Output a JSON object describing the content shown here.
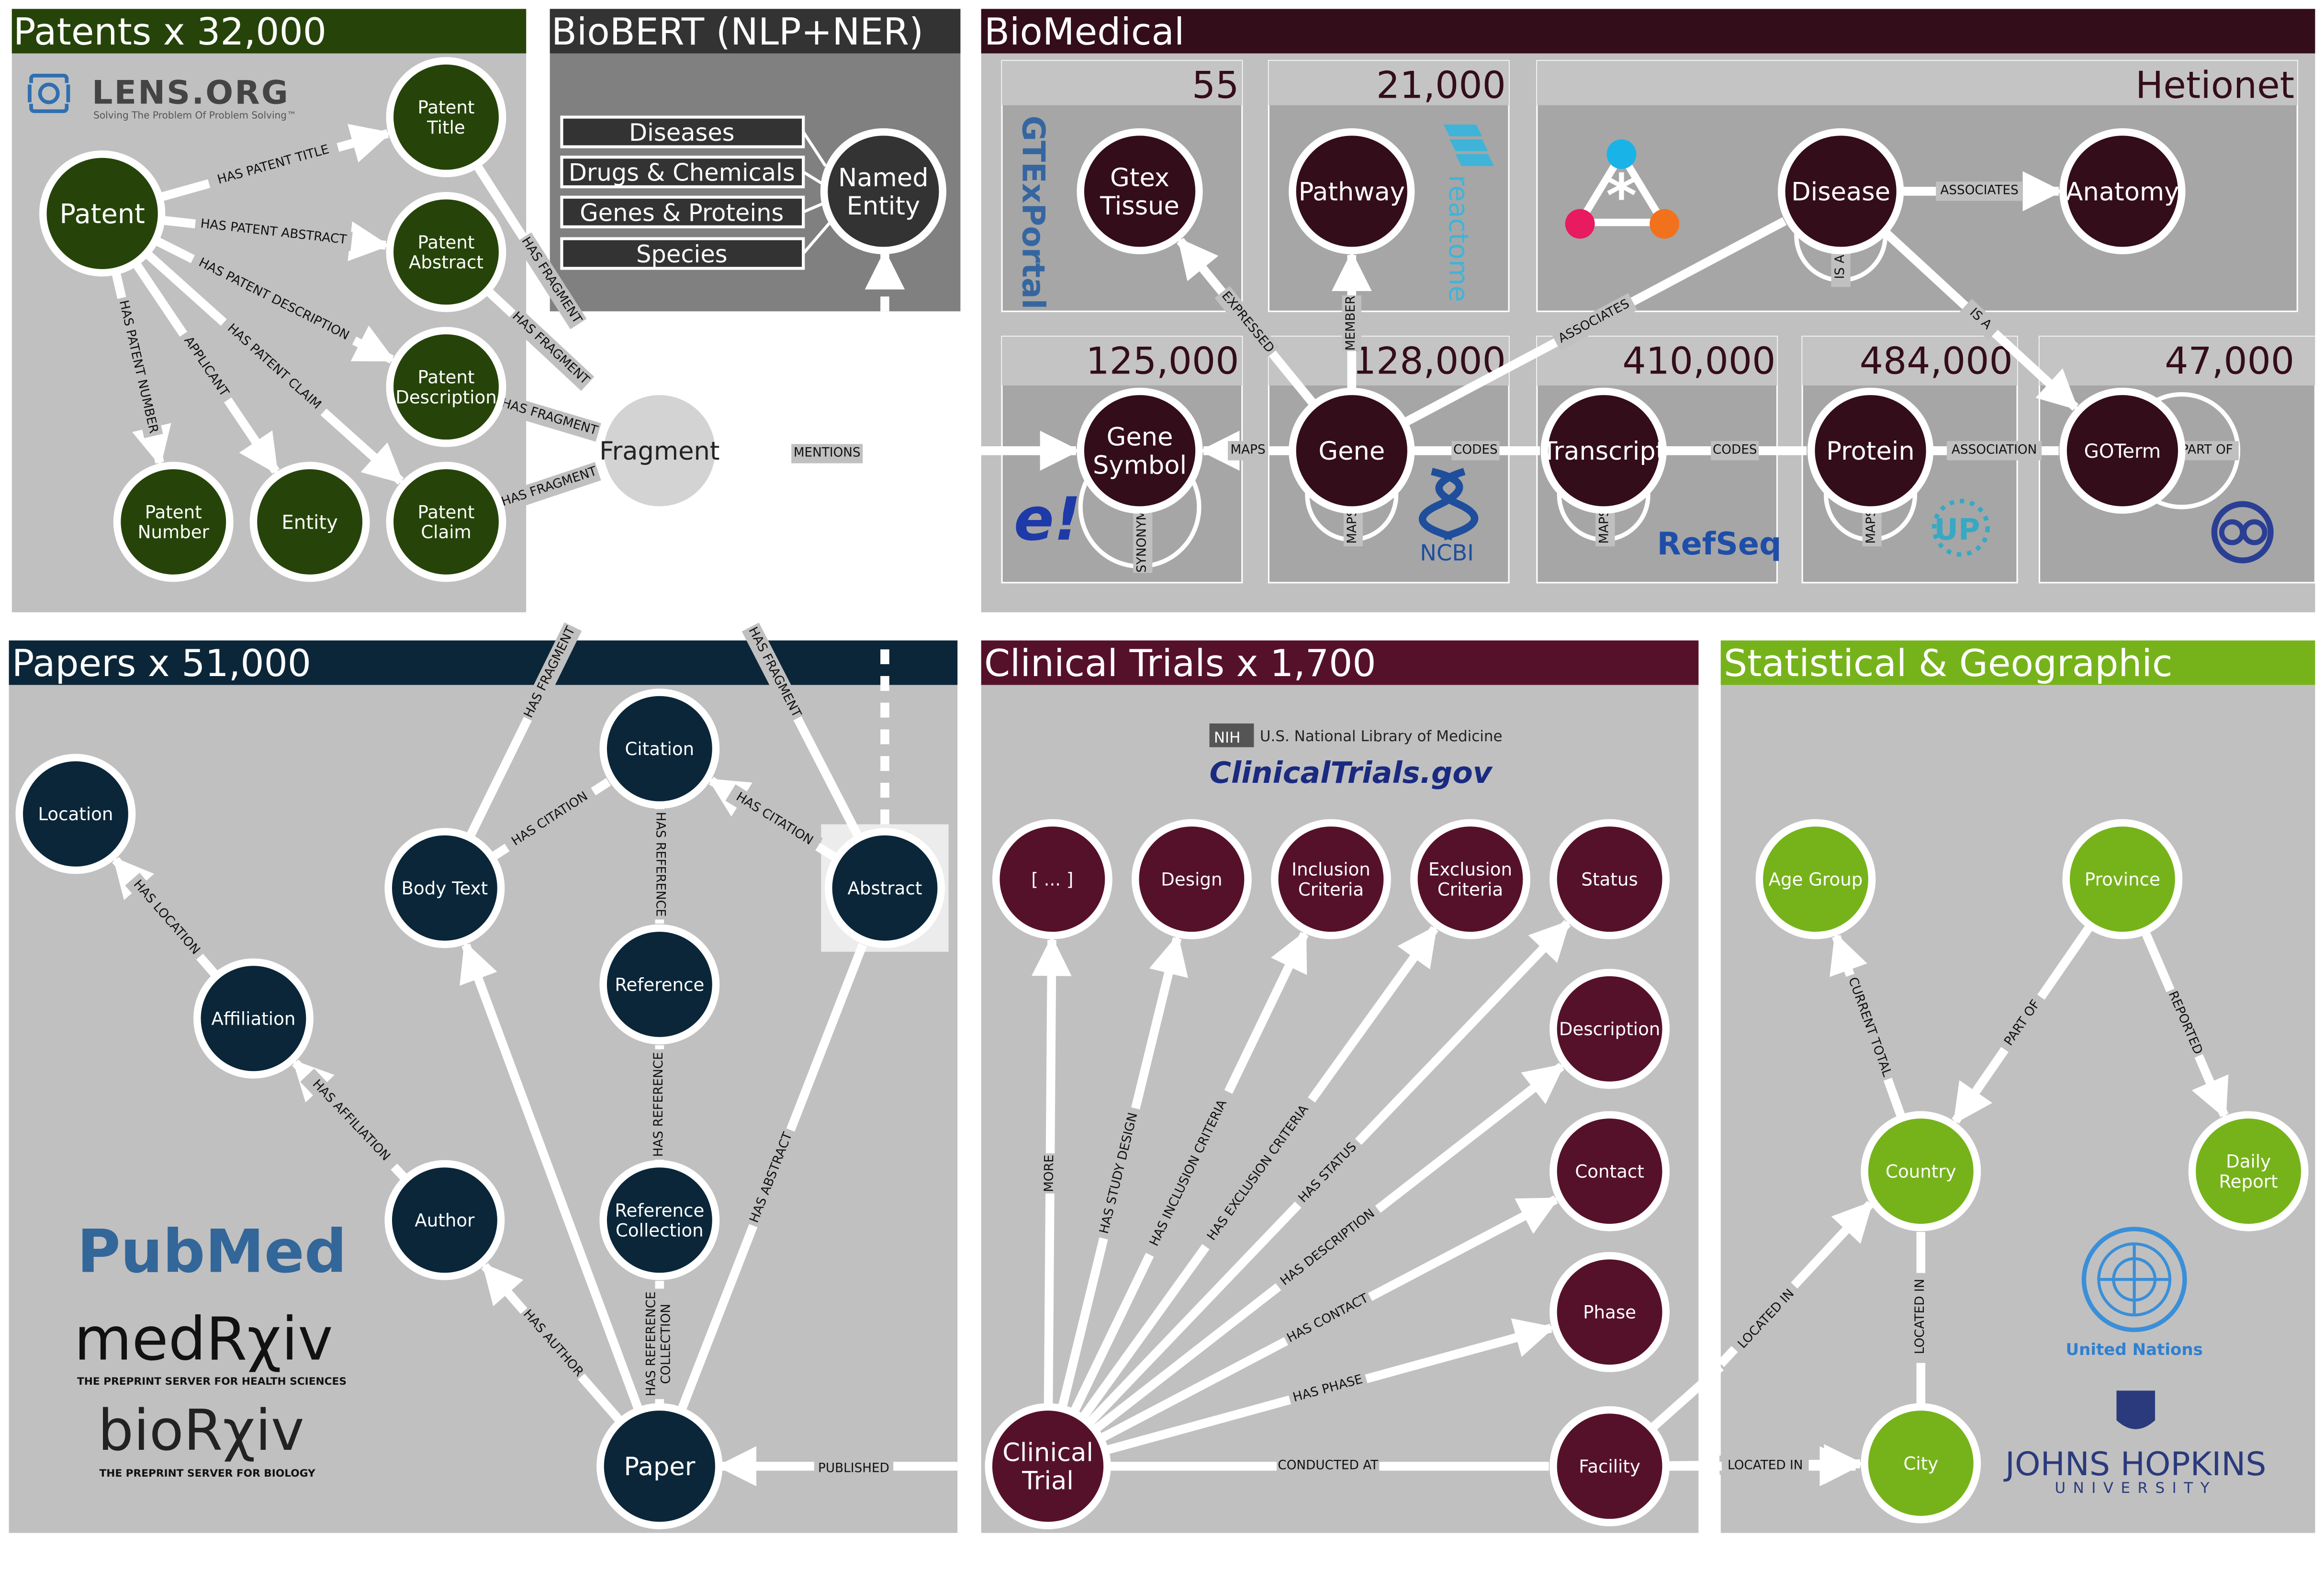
{
  "panels": {
    "patents": {
      "title": "Patents x 32,000"
    },
    "biobert": {
      "title": "BioBERT (NLP+NER)"
    },
    "biomedical": {
      "title": "BioMedical"
    },
    "papers": {
      "title": "Papers x 51,000"
    },
    "trials": {
      "title": "Clinical Trials x 1,700"
    },
    "statgeo": {
      "title": "Statistical & Geographic"
    }
  },
  "colors": {
    "patents": "#264409",
    "biobert": "#333333",
    "biomedical": "#340d1a",
    "papers": "#0b2639",
    "trials": "#56112a",
    "statgeo": "#76b31b",
    "panel_bg": "#c0c0c0"
  },
  "logos": {
    "lens": {
      "name": "LENS.ORG",
      "tagline": "Solving The Problem Of Problem Solving™",
      "icon": "lens-icon"
    },
    "pubmed": {
      "text": "PubMed"
    },
    "medrxiv": {
      "name": "medRχiv",
      "tagline": "THE PREPRINT SERVER FOR HEALTH SCIENCES"
    },
    "biorxiv": {
      "name": "bioRχiv",
      "tagline": "THE PREPRINT SERVER FOR BIOLOGY"
    },
    "nih": {
      "badge": "NIH",
      "text": "U.S. National Library of Medicine",
      "product": "ClinicalTrials.gov"
    },
    "un": {
      "text": "United Nations",
      "icon": "un-emblem-icon"
    },
    "jhu": {
      "name": "JOHNS HOPKINS",
      "sub": "UNIVERSITY",
      "icon": "jhu-shield-icon"
    },
    "gtex": {
      "text": "GTExPortal"
    },
    "reactome": {
      "text": "reactome"
    },
    "ncbi": {
      "text": "NCBI"
    },
    "refseq": {
      "text": "RefSeq"
    },
    "uniprot": {
      "text": "UP"
    },
    "ensembl": {
      "text": "e!"
    },
    "go": {
      "text": "go"
    },
    "hetionet": {
      "icon": "hetionet-icon"
    }
  },
  "ner_entities": [
    "Diseases",
    "Drugs & Chemicals",
    "Genes & Proteins",
    "Species"
  ],
  "biomed_counts": {
    "gtex": "55",
    "pathway": "21,000",
    "hetionet": "Hetionet",
    "genesymbol": "125,000",
    "gene": "128,000",
    "transcript": "410,000",
    "protein": "484,000",
    "goterm": "47,000"
  },
  "nodes": {
    "patent": "Patent",
    "patent_title": [
      "Patent",
      "Title"
    ],
    "patent_abstract": [
      "Patent",
      "Abstract"
    ],
    "patent_description": [
      "Patent",
      "Description"
    ],
    "patent_claim": [
      "Patent",
      "Claim"
    ],
    "patent_number": [
      "Patent",
      "Number"
    ],
    "entity": "Entity",
    "named_entity": [
      "Named",
      "Entity"
    ],
    "fragment": "Fragment",
    "gtex_tissue": [
      "Gtex",
      "Tissue"
    ],
    "pathway": "Pathway",
    "disease": "Disease",
    "anatomy": "Anatomy",
    "gene_symbol": [
      "Gene",
      "Symbol"
    ],
    "gene": "Gene",
    "transcript": "Transcript",
    "protein": "Protein",
    "goterm": "GOTerm",
    "location": "Location",
    "affiliation": "Affiliation",
    "author": "Author",
    "body_text": "Body Text",
    "citation": "Citation",
    "reference": "Reference",
    "reference_collection": [
      "Reference",
      "Collection"
    ],
    "abstract": "Abstract",
    "paper": "Paper",
    "more": "[ ... ]",
    "design": "Design",
    "inclusion": [
      "Inclusion",
      "Criteria"
    ],
    "exclusion": [
      "Exclusion",
      "Criteria"
    ],
    "status": "Status",
    "description": "Description",
    "contact": "Contact",
    "phase": "Phase",
    "facility": "Facility",
    "clinical_trial": [
      "Clinical",
      "Trial"
    ],
    "age_group": "Age Group",
    "province": "Province",
    "country": "Country",
    "daily_report": [
      "Daily",
      "Report"
    ],
    "city": "City"
  },
  "edges": {
    "has_patent_title": "HAS PATENT TITLE",
    "has_patent_abstract": "HAS PATENT ABSTRACT",
    "has_patent_description": "HAS PATENT DESCRIPTION",
    "has_patent_claim": "HAS PATENT CLAIM",
    "applicant": "APPLICANT",
    "has_patent_number": "HAS PATENT NUMBER",
    "has_fragment": "HAS FRAGMENT",
    "mentions": "MENTIONS",
    "expressed": "EXPRESSED",
    "member": "MEMBER",
    "associates": "ASSOCIATES",
    "is_a": "IS A",
    "maps": "MAPS",
    "codes": "CODES",
    "association": "ASSOCIATION",
    "part_of_go": "PART OF",
    "synonym": "SYNONYM",
    "has_location": "HAS LOCATION",
    "has_affiliation": "HAS AFFILIATION",
    "has_author": "HAS AUTHOR",
    "has_citation": "HAS CITATION",
    "has_reference": "HAS REFERENCE",
    "has_reference_collection": [
      "HAS REFERENCE",
      "COLLECTION"
    ],
    "has_abstract": "HAS ABSTRACT",
    "published": "PUBLISHED",
    "more": "MORE",
    "has_study_design": "HAS STUDY DESIGN",
    "has_inclusion": "HAS INCLUSION CRITERIA",
    "has_exclusion": "HAS EXCLUSION CRITERIA",
    "has_status": "HAS STATUS",
    "has_description": "HAS DESCRIPTION",
    "has_contact": "HAS CONTACT",
    "has_phase": "HAS PHASE",
    "conducted_at": "CONDUCTED AT",
    "located_in": "LOCATED IN",
    "current_total": "CURRENT TOTAL",
    "part_of": "PART OF",
    "reported": "REPORTED"
  }
}
